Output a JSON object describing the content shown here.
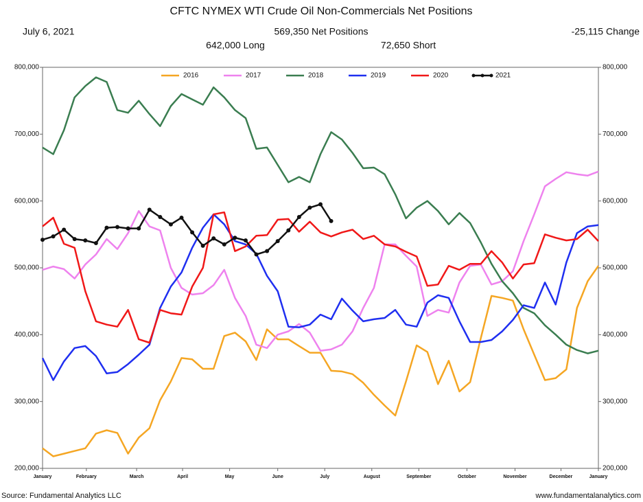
{
  "chart_data": {
    "type": "line",
    "title": "CFTC NYMEX WTI Crude Oil Non-Commercials Net Positions",
    "date": "July 6, 2021",
    "net_positions": "569,350 Net Positions",
    "change": "-25,115 Change",
    "long": "642,000 Long",
    "short": "72,650 Short",
    "source": "Source: Fundamental Analytics LLC",
    "website": "www.fundamentalanalytics.com",
    "x": [
      0,
      1,
      2,
      3,
      4,
      5,
      6,
      7,
      8,
      9,
      10,
      11,
      12,
      13,
      14,
      15,
      16,
      17,
      18,
      19,
      20,
      21,
      22,
      23,
      24,
      25,
      26,
      27,
      28,
      29,
      30,
      31,
      32,
      33,
      34,
      35,
      36,
      37,
      38,
      39,
      40,
      41,
      42,
      43,
      44,
      45,
      46,
      47,
      48,
      49,
      50,
      51,
      52
    ],
    "xlim": [
      0,
      52
    ],
    "xticks": [
      {
        "value": 0,
        "label": "January"
      },
      {
        "value": 4.1,
        "label": "February"
      },
      {
        "value": 8.8,
        "label": "March"
      },
      {
        "value": 13.1,
        "label": "April"
      },
      {
        "value": 17.5,
        "label": "May"
      },
      {
        "value": 22,
        "label": "June"
      },
      {
        "value": 26.4,
        "label": "July"
      },
      {
        "value": 30.8,
        "label": "August"
      },
      {
        "value": 35.2,
        "label": "September"
      },
      {
        "value": 39.7,
        "label": "October"
      },
      {
        "value": 44.2,
        "label": "November"
      },
      {
        "value": 48.5,
        "label": "December"
      },
      {
        "value": 52,
        "label": "January"
      }
    ],
    "ylim": [
      200000,
      800000
    ],
    "yticks": [
      {
        "value": 200000,
        "label": "200,000"
      },
      {
        "value": 300000,
        "label": "300,000"
      },
      {
        "value": 400000,
        "label": "400,000"
      },
      {
        "value": 500000,
        "label": "500,000"
      },
      {
        "value": 600000,
        "label": "600,000"
      },
      {
        "value": 700000,
        "label": "700,000"
      },
      {
        "value": 800000,
        "label": "800,000"
      }
    ],
    "y2lim": [
      200000,
      800000
    ],
    "y2ticks": [
      {
        "value": 200000,
        "label": "200,000"
      },
      {
        "value": 300000,
        "label": "300,000"
      },
      {
        "value": 400000,
        "label": "400,000"
      },
      {
        "value": 500000,
        "label": "500,000"
      },
      {
        "value": 600000,
        "label": "600,000"
      },
      {
        "value": 700000,
        "label": "700,000"
      },
      {
        "value": 800000,
        "label": "800,000"
      }
    ],
    "legend": "top",
    "series": [
      {
        "name": "2016",
        "color": "#f5a623",
        "markers": false,
        "values": [
          230000,
          218000,
          222000,
          226000,
          230000,
          252000,
          257000,
          253000,
          222000,
          246000,
          260000,
          302000,
          330000,
          365000,
          363000,
          349000,
          349000,
          398000,
          403000,
          390000,
          362000,
          408000,
          393000,
          393000,
          383000,
          373000,
          373000,
          346000,
          345000,
          341000,
          328000,
          310000,
          294000,
          279000,
          330000,
          384000,
          374000,
          326000,
          361000,
          315000,
          329000,
          395000,
          458000,
          455000,
          451000,
          408000,
          370000,
          332000,
          335000,
          348000,
          440000,
          480000,
          503000
        ]
      },
      {
        "name": "2017",
        "color": "#ee82ee",
        "markers": false,
        "values": [
          497000,
          502000,
          498000,
          484000,
          505000,
          520000,
          543000,
          528000,
          552000,
          585000,
          562000,
          556000,
          500000,
          470000,
          460000,
          462000,
          474000,
          497000,
          455000,
          428000,
          385000,
          380000,
          400000,
          405000,
          416000,
          403000,
          376000,
          378000,
          385000,
          405000,
          440000,
          470000,
          535000,
          535000,
          518000,
          502000,
          428000,
          437000,
          433000,
          478000,
          503000,
          505000,
          475000,
          480000,
          495000,
          540000,
          580000,
          622000,
          633000,
          643000,
          640000,
          638000,
          644000
        ]
      },
      {
        "name": "2018",
        "color": "#3a7d50",
        "markers": false,
        "values": [
          680000,
          670000,
          706000,
          755000,
          772000,
          785000,
          778000,
          736000,
          732000,
          750000,
          730000,
          712000,
          742000,
          760000,
          752000,
          744000,
          770000,
          755000,
          736000,
          724000,
          678000,
          680000,
          654000,
          628000,
          636000,
          628000,
          670000,
          703000,
          692000,
          672000,
          649000,
          650000,
          640000,
          610000,
          574000,
          590000,
          600000,
          585000,
          565000,
          582000,
          567000,
          538000,
          506000,
          480000,
          462000,
          440000,
          432000,
          414000,
          400000,
          385000,
          377000,
          372000,
          376000
        ]
      },
      {
        "name": "2019",
        "color": "#1f2ff0",
        "markers": false,
        "values": [
          365000,
          332000,
          360000,
          380000,
          383000,
          368000,
          342000,
          344000,
          356000,
          370000,
          385000,
          440000,
          472000,
          493000,
          530000,
          560000,
          580000,
          565000,
          540000,
          535000,
          521000,
          488000,
          465000,
          412000,
          411000,
          415000,
          430000,
          423000,
          454000,
          436000,
          420000,
          423000,
          425000,
          437000,
          415000,
          412000,
          448000,
          459000,
          455000,
          420000,
          389000,
          389000,
          392000,
          405000,
          422000,
          444000,
          440000,
          478000,
          445000,
          508000,
          552000,
          562000,
          564000
        ]
      },
      {
        "name": "2020",
        "color": "#f01818",
        "markers": false,
        "values": [
          562000,
          575000,
          536000,
          530000,
          465000,
          420000,
          415000,
          412000,
          437000,
          393000,
          388000,
          437000,
          432000,
          430000,
          472000,
          500000,
          580000,
          583000,
          525000,
          532000,
          548000,
          549000,
          572000,
          573000,
          554000,
          569000,
          553000,
          547000,
          553000,
          557000,
          543000,
          548000,
          535000,
          532000,
          524000,
          517000,
          473000,
          475000,
          503000,
          497000,
          506000,
          506000,
          525000,
          508000,
          484000,
          505000,
          507000,
          550000,
          545000,
          541000,
          543000,
          557000,
          540000
        ]
      },
      {
        "name": "2021",
        "color": "#111111",
        "markers": true,
        "values": [
          542000,
          547000,
          557000,
          543000,
          541000,
          537000,
          560000,
          561000,
          559000,
          559000,
          587000,
          576000,
          565000,
          575000,
          553000,
          533000,
          544000,
          535000,
          545000,
          541000,
          520000,
          525000,
          540000,
          556000,
          576000,
          590000,
          595000,
          570000,
          null,
          null,
          null,
          null,
          null,
          null,
          null,
          null,
          null,
          null,
          null,
          null,
          null,
          null,
          null,
          null,
          null,
          null,
          null,
          null,
          null,
          null,
          null,
          null,
          null
        ]
      }
    ]
  }
}
